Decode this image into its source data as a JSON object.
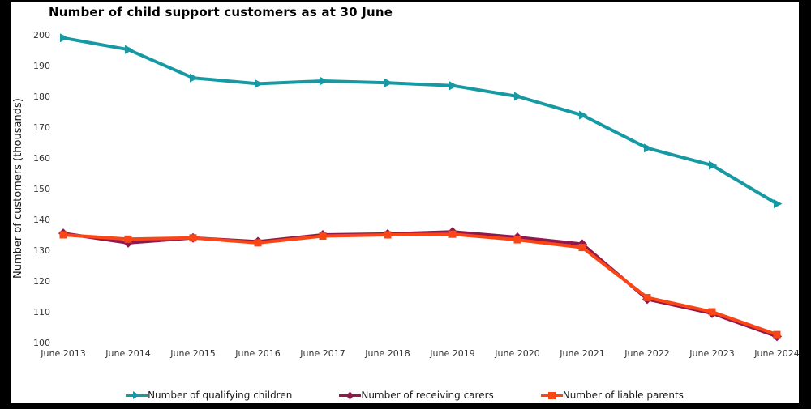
{
  "title": "Number of child support customers as at 30 June",
  "y_axis_label": "Number of customers (thousands)",
  "colors": {
    "frame_border": "#000000",
    "panel_background": "#ffffff",
    "title_text": "#000000",
    "tick_text": "#333333",
    "qualifying_children": "#1699A2",
    "receiving_carers": "#92184C",
    "liable_parents": "#FA4616"
  },
  "chart_data": {
    "type": "line",
    "title": "Number of child support customers as at 30 June",
    "xlabel": "",
    "ylabel": "Number of customers (thousands)",
    "ylim": [
      100,
      200
    ],
    "yticks": [
      200,
      190,
      180,
      170,
      160,
      150,
      140,
      130,
      120,
      110,
      100
    ],
    "grid": false,
    "legend_position": "bottom",
    "categories": [
      "June 2013",
      "June 2014",
      "June 2015",
      "June 2016",
      "June 2017",
      "June 2018",
      "June 2019",
      "June 2020",
      "June 2021",
      "June 2022",
      "June 2023",
      "June 2024"
    ],
    "series": [
      {
        "name": "Number of qualifying children",
        "color": "#1699A2",
        "marker": "triangle-right",
        "values": [
          199.0,
          195.2,
          186.0,
          184.1,
          185.0,
          184.4,
          183.5,
          180.0,
          173.9,
          163.2,
          157.6,
          145.1
        ]
      },
      {
        "name": "Number of receiving carers",
        "color": "#92184C",
        "marker": "diamond",
        "values": [
          135.5,
          132.4,
          134.0,
          132.8,
          135.0,
          135.3,
          136.0,
          134.2,
          132.0,
          114.1,
          109.5,
          102.0
        ]
      },
      {
        "name": "Number of liable parents",
        "color": "#FA4616",
        "marker": "square",
        "values": [
          135.0,
          133.6,
          134.0,
          132.4,
          134.6,
          135.0,
          135.2,
          133.4,
          130.9,
          114.6,
          110.0,
          102.6
        ]
      }
    ]
  }
}
